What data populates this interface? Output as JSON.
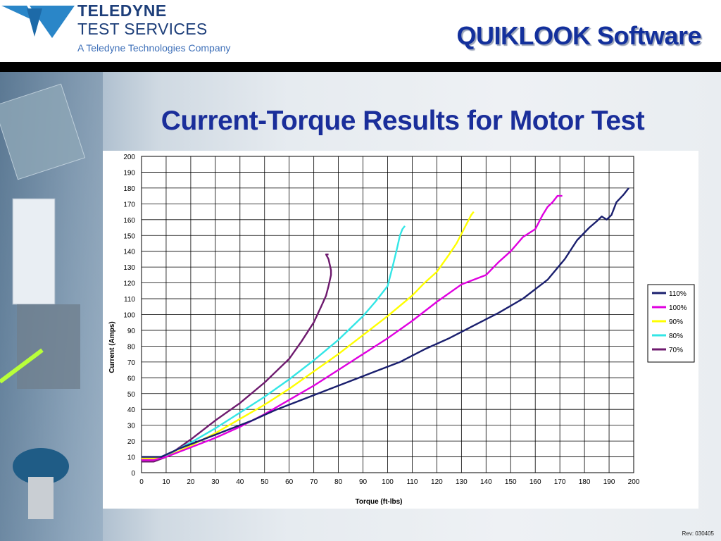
{
  "header": {
    "company_line1": "TELEDYNE",
    "company_line2": "TEST SERVICES",
    "company_line3": "A Teledyne Technologies Company",
    "app_title": "QUIKLOOK Software",
    "logo_icon": "teledyne-triangle-logo-icon",
    "colors": {
      "brand": "#1e3f7a",
      "title": "#13309c"
    }
  },
  "slide": {
    "title": "Current-Torque Results for Motor Test",
    "revision": "Rev: 030405"
  },
  "chart_data": {
    "type": "line",
    "title": "",
    "xlabel": "Torque (ft-lbs)",
    "ylabel": "Current (Amps)",
    "xlim": [
      0,
      200
    ],
    "ylim": [
      0,
      200
    ],
    "x_ticks": [
      0,
      10,
      20,
      30,
      40,
      50,
      60,
      70,
      80,
      90,
      100,
      110,
      120,
      130,
      140,
      150,
      160,
      170,
      180,
      190,
      200
    ],
    "y_ticks": [
      0,
      10,
      20,
      30,
      40,
      50,
      60,
      70,
      80,
      90,
      100,
      110,
      120,
      130,
      140,
      150,
      160,
      170,
      180,
      190,
      200
    ],
    "grid": true,
    "legend_position": "right",
    "series": [
      {
        "name": "110%",
        "color": "#1a1f6e",
        "x": [
          0,
          8,
          15,
          25,
          35,
          45,
          55,
          65,
          75,
          85,
          95,
          105,
          115,
          125,
          135,
          145,
          155,
          165,
          172,
          177,
          182,
          185,
          187,
          189,
          191,
          193,
          196,
          198
        ],
        "y": [
          10,
          10,
          15,
          21,
          27,
          33,
          40,
          46,
          52,
          58,
          64,
          70,
          78,
          85,
          93,
          101,
          110,
          122,
          135,
          147,
          155,
          159,
          162,
          160,
          163,
          171,
          176,
          180
        ]
      },
      {
        "name": "100%",
        "color": "#e000e0",
        "x": [
          0,
          5,
          10,
          20,
          30,
          40,
          50,
          60,
          70,
          80,
          90,
          100,
          110,
          120,
          130,
          140,
          145,
          150,
          155,
          160,
          163,
          165,
          167,
          169,
          171
        ],
        "y": [
          8,
          8,
          10,
          16,
          22,
          29,
          37,
          46,
          55,
          65,
          75,
          85,
          96,
          108,
          119,
          125,
          133,
          140,
          149,
          154,
          163,
          168,
          171,
          175,
          175
        ]
      },
      {
        "name": "90%",
        "color": "#ffff00",
        "x": [
          0,
          5,
          10,
          20,
          30,
          40,
          50,
          60,
          70,
          80,
          90,
          100,
          110,
          115,
          120,
          125,
          128,
          130,
          132,
          133,
          134,
          135
        ],
        "y": [
          9,
          9,
          10,
          17,
          25,
          34,
          43,
          53,
          64,
          75,
          87,
          99,
          112,
          120,
          127,
          138,
          145,
          151,
          157,
          160,
          163,
          165
        ]
      },
      {
        "name": "80%",
        "color": "#33e6e6",
        "x": [
          0,
          5,
          10,
          20,
          30,
          40,
          50,
          60,
          70,
          80,
          90,
          95,
          100,
          102,
          104,
          105,
          106,
          107
        ],
        "y": [
          9,
          9,
          11,
          19,
          28,
          38,
          48,
          59,
          71,
          84,
          99,
          108,
          118,
          130,
          143,
          150,
          154,
          156
        ]
      },
      {
        "name": "70%",
        "color": "#6e1a6e",
        "x": [
          0,
          5,
          10,
          20,
          30,
          40,
          50,
          60,
          65,
          70,
          73,
          75,
          76,
          77,
          77,
          76,
          75,
          76
        ],
        "y": [
          7,
          7,
          10,
          21,
          33,
          44,
          57,
          72,
          83,
          95,
          105,
          112,
          118,
          125,
          128,
          135,
          138,
          138
        ]
      }
    ]
  }
}
